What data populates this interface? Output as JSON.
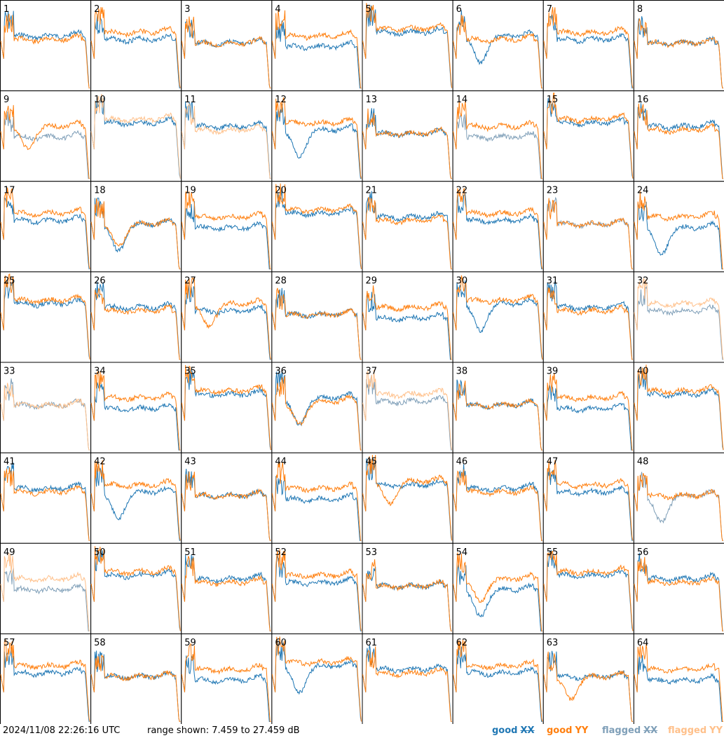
{
  "chart_data": {
    "type": "line",
    "grid": {
      "rows": 8,
      "cols": 8
    },
    "panels": [
      {
        "id": "1",
        "xx": "good",
        "yy": "good"
      },
      {
        "id": "2",
        "xx": "good",
        "yy": "good"
      },
      {
        "id": "3",
        "xx": "good",
        "yy": "good"
      },
      {
        "id": "4",
        "xx": "good",
        "yy": "good"
      },
      {
        "id": "5",
        "xx": "good",
        "yy": "good"
      },
      {
        "id": "6",
        "xx": "good",
        "yy": "good"
      },
      {
        "id": "7",
        "xx": "good",
        "yy": "good"
      },
      {
        "id": "8",
        "xx": "good",
        "yy": "good"
      },
      {
        "id": "9",
        "xx": "flagged",
        "yy": "good"
      },
      {
        "id": "10",
        "xx": "good",
        "yy": "flagged"
      },
      {
        "id": "11",
        "xx": "good",
        "yy": "flagged"
      },
      {
        "id": "12",
        "xx": "good",
        "yy": "good"
      },
      {
        "id": "13",
        "xx": "good",
        "yy": "good"
      },
      {
        "id": "14",
        "xx": "flagged",
        "yy": "good"
      },
      {
        "id": "15",
        "xx": "good",
        "yy": "good"
      },
      {
        "id": "16",
        "xx": "good",
        "yy": "good"
      },
      {
        "id": "17",
        "xx": "good",
        "yy": "good"
      },
      {
        "id": "18",
        "xx": "good",
        "yy": "good"
      },
      {
        "id": "19",
        "xx": "good",
        "yy": "good"
      },
      {
        "id": "20",
        "xx": "good",
        "yy": "good"
      },
      {
        "id": "21",
        "xx": "good",
        "yy": "good"
      },
      {
        "id": "22",
        "xx": "good",
        "yy": "good"
      },
      {
        "id": "23",
        "xx": "flagged",
        "yy": "good"
      },
      {
        "id": "24",
        "xx": "good",
        "yy": "good"
      },
      {
        "id": "25",
        "xx": "good",
        "yy": "good"
      },
      {
        "id": "26",
        "xx": "good",
        "yy": "good"
      },
      {
        "id": "27",
        "xx": "good",
        "yy": "good"
      },
      {
        "id": "28",
        "xx": "good",
        "yy": "good"
      },
      {
        "id": "29",
        "xx": "good",
        "yy": "good"
      },
      {
        "id": "30",
        "xx": "good",
        "yy": "good"
      },
      {
        "id": "31",
        "xx": "good",
        "yy": "good"
      },
      {
        "id": "32",
        "xx": "flagged",
        "yy": "flagged"
      },
      {
        "id": "33",
        "xx": "flagged",
        "yy": "flagged"
      },
      {
        "id": "34",
        "xx": "good",
        "yy": "good"
      },
      {
        "id": "35",
        "xx": "good",
        "yy": "good"
      },
      {
        "id": "36",
        "xx": "good",
        "yy": "good"
      },
      {
        "id": "37",
        "xx": "flagged",
        "yy": "flagged"
      },
      {
        "id": "38",
        "xx": "good",
        "yy": "good"
      },
      {
        "id": "39",
        "xx": "good",
        "yy": "good"
      },
      {
        "id": "40",
        "xx": "good",
        "yy": "good"
      },
      {
        "id": "41",
        "xx": "good",
        "yy": "good"
      },
      {
        "id": "42",
        "xx": "good",
        "yy": "good"
      },
      {
        "id": "43",
        "xx": "good",
        "yy": "good"
      },
      {
        "id": "44",
        "xx": "good",
        "yy": "good"
      },
      {
        "id": "45",
        "xx": "good",
        "yy": "good"
      },
      {
        "id": "46",
        "xx": "good",
        "yy": "good"
      },
      {
        "id": "47",
        "xx": "good",
        "yy": "good"
      },
      {
        "id": "48",
        "xx": "flagged",
        "yy": "good"
      },
      {
        "id": "49",
        "xx": "flagged",
        "yy": "flagged"
      },
      {
        "id": "50",
        "xx": "good",
        "yy": "good"
      },
      {
        "id": "51",
        "xx": "good",
        "yy": "good"
      },
      {
        "id": "52",
        "xx": "good",
        "yy": "good"
      },
      {
        "id": "53",
        "xx": "good",
        "yy": "good"
      },
      {
        "id": "54",
        "xx": "good",
        "yy": "good"
      },
      {
        "id": "55",
        "xx": "good",
        "yy": "good"
      },
      {
        "id": "56",
        "xx": "good",
        "yy": "good"
      },
      {
        "id": "57",
        "xx": "good",
        "yy": "good"
      },
      {
        "id": "58",
        "xx": "good",
        "yy": "good"
      },
      {
        "id": "59",
        "xx": "good",
        "yy": "good"
      },
      {
        "id": "60",
        "xx": "good",
        "yy": "good"
      },
      {
        "id": "61",
        "xx": "good",
        "yy": "good"
      },
      {
        "id": "62",
        "xx": "good",
        "yy": "good"
      },
      {
        "id": "63",
        "xx": "good",
        "yy": "good"
      },
      {
        "id": "64",
        "xx": "good",
        "yy": "good"
      }
    ],
    "ylim": [
      7.459,
      27.459
    ],
    "ylabel_unit": "dB",
    "legend": [
      {
        "label": "good",
        "pol": "XX",
        "status": "good"
      },
      {
        "label": "good",
        "pol": "YY",
        "status": "good"
      },
      {
        "label": "flagged",
        "pol": "XX",
        "status": "flagged"
      },
      {
        "label": "flagged",
        "pol": "YY",
        "status": "flagged"
      }
    ],
    "legend_position": "bottom-right"
  },
  "colors": {
    "good_xx": "#1f77b4",
    "good_yy": "#ff7f0e",
    "flagged_xx": "#7f9fb8",
    "flagged_yy": "#ffc08a",
    "frame": "#000000",
    "background": "#ffffff"
  },
  "footer": {
    "timestamp": "2024/11/08 22:26:16 UTC",
    "range": "range shown: 7.459 to 27.459 dB"
  }
}
